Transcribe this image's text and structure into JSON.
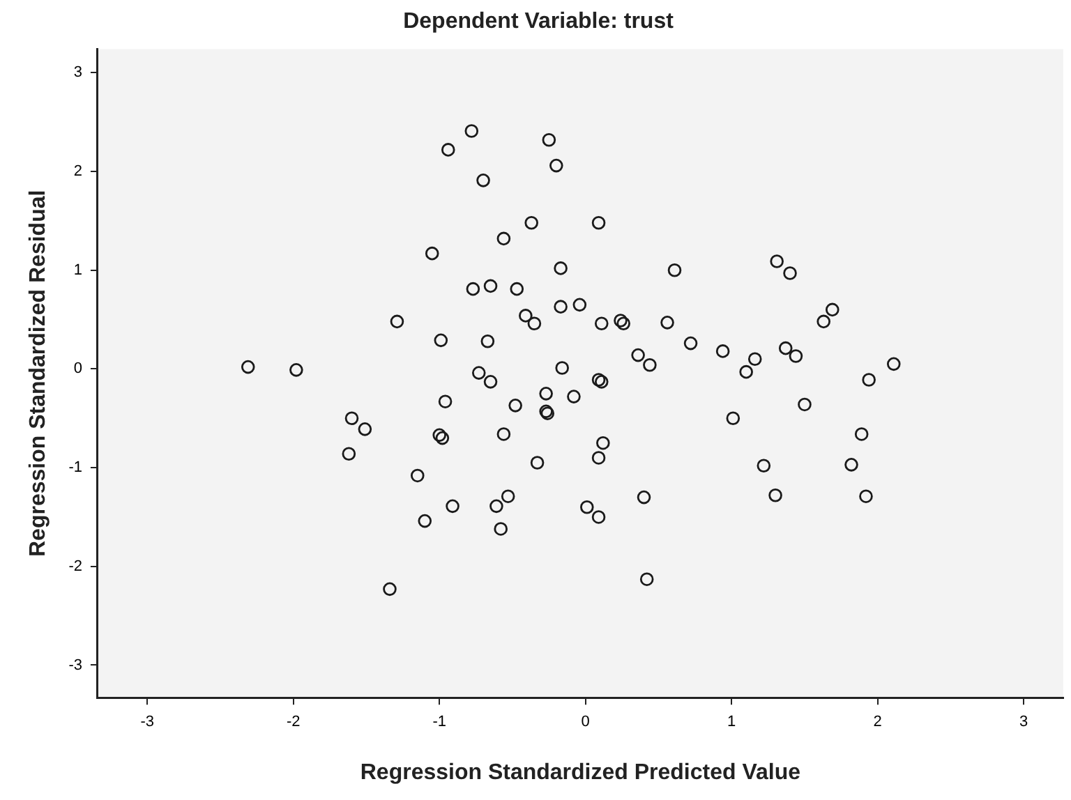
{
  "chart_data": {
    "type": "scatter",
    "title": "Dependent Variable: trust",
    "xlabel": "Regression Standardized Predicted Value",
    "ylabel": "Regression Standardized Residual",
    "xlim": [
      -3.34,
      3.27
    ],
    "ylim": [
      -3.33,
      3.24
    ],
    "xticks": [
      -3,
      -2,
      -1,
      0,
      1,
      2,
      3
    ],
    "yticks": [
      -3,
      -2,
      -1,
      0,
      1,
      2,
      3
    ],
    "grid": false,
    "legend": false,
    "marker": "circle",
    "series": [
      {
        "color": "#1a1a1a",
        "x": [
          -0.78,
          -0.94,
          -0.25,
          -0.2,
          -0.7,
          -0.37,
          -0.56,
          -1.05,
          -0.17,
          -0.77,
          -0.65,
          -0.47,
          -0.41,
          -0.35,
          -0.17,
          -0.04,
          -1.29,
          -0.99,
          -0.67,
          -2.31,
          -1.98,
          -0.73,
          -0.65,
          -0.16,
          0.09,
          0.61,
          1.31,
          1.4,
          0.11,
          0.24,
          0.26,
          0.56,
          0.72,
          0.36,
          0.44,
          0.94,
          1.16,
          1.1,
          1.37,
          1.44,
          1.63,
          1.69,
          2.11,
          1.94,
          0.09,
          0.11,
          -1.6,
          -1.51,
          -1.62,
          -0.96,
          -1.0,
          -0.98,
          -0.48,
          -0.27,
          -0.27,
          -0.26,
          -0.08,
          -0.56,
          -0.33,
          -1.15,
          -0.53,
          -0.61,
          -0.91,
          -1.1,
          -0.58,
          -1.34,
          0.01,
          1.5,
          1.01,
          1.89,
          0.12,
          0.09,
          1.22,
          1.82,
          1.3,
          1.92,
          0.4,
          0.09,
          0.42
        ],
        "values": [
          2.41,
          2.22,
          2.32,
          2.06,
          1.91,
          1.48,
          1.32,
          1.17,
          1.02,
          0.81,
          0.84,
          0.81,
          0.54,
          0.46,
          0.63,
          0.65,
          0.48,
          0.29,
          0.28,
          0.02,
          -0.01,
          -0.04,
          -0.13,
          0.01,
          1.48,
          1.0,
          1.09,
          0.97,
          0.46,
          0.49,
          0.46,
          0.47,
          0.26,
          0.14,
          0.04,
          0.18,
          0.1,
          -0.03,
          0.21,
          0.13,
          0.48,
          0.6,
          0.05,
          -0.11,
          -0.11,
          -0.13,
          -0.5,
          -0.61,
          -0.86,
          -0.33,
          -0.67,
          -0.7,
          -0.37,
          -0.25,
          -0.43,
          -0.45,
          -0.28,
          -0.66,
          -0.95,
          -1.08,
          -1.29,
          -1.39,
          -1.39,
          -1.54,
          -1.62,
          -2.23,
          -1.4,
          -0.36,
          -0.5,
          -0.66,
          -0.75,
          -0.9,
          -0.98,
          -0.97,
          -1.28,
          -1.29,
          -1.3,
          -1.5,
          -2.13
        ]
      }
    ]
  }
}
